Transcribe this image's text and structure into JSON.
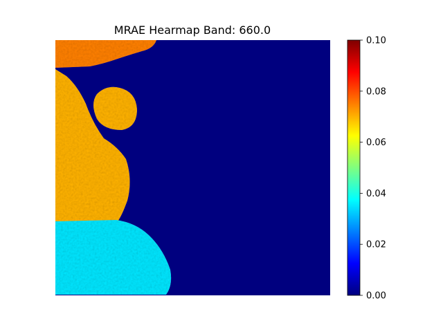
{
  "chart_data": {
    "type": "heatmap",
    "title": "MRAE Hearmap Band: 660.0",
    "xlabel": "",
    "ylabel": "",
    "axes_visible": false,
    "grid": false,
    "colormap": "jet",
    "colormap_stops": [
      "#00007f",
      "#0000ff",
      "#00ffff",
      "#ffff00",
      "#ff0000",
      "#7f0000"
    ],
    "value_range": [
      0.0,
      0.1
    ],
    "colorbar": {
      "position": "right",
      "ticks": [
        0.0,
        0.02,
        0.04,
        0.06,
        0.08,
        0.1
      ],
      "tick_labels": [
        "0.00",
        "0.02",
        "0.04",
        "0.06",
        "0.08",
        "0.10"
      ]
    },
    "regions": [
      {
        "name": "top-left strip",
        "typical_value": 0.075
      },
      {
        "name": "small oval",
        "typical_value": 0.07
      },
      {
        "name": "left upper mass",
        "typical_value": 0.07
      },
      {
        "name": "left lower mass",
        "typical_value": 0.035
      },
      {
        "name": "background",
        "typical_value": 0.002
      }
    ]
  }
}
